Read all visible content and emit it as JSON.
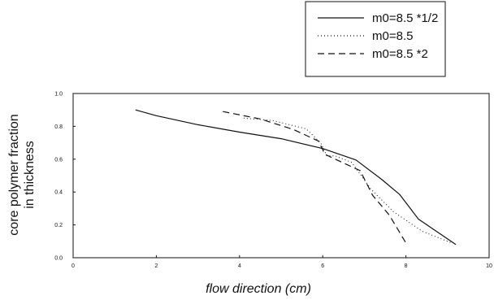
{
  "chart_data": {
    "type": "line",
    "xlabel": "flow direction  (cm)",
    "ylabel_lines": [
      "core polymer fraction",
      "in thickness"
    ],
    "xlim": [
      0,
      10
    ],
    "ylim": [
      0,
      1.0
    ],
    "xticks": [
      "0",
      "2",
      "4",
      "6",
      "8",
      "10"
    ],
    "yticks": [
      "0.0",
      "0.2",
      "0.4",
      "0.6",
      "0.8",
      "1.0"
    ],
    "grid": false,
    "legend_position": "top-right, outside plot",
    "series": [
      {
        "name": "m0=8.5 *1/2",
        "style": "solid",
        "x": [
          1.5,
          2.0,
          3.0,
          4.0,
          5.0,
          6.0,
          6.8,
          7.4,
          7.85,
          8.3,
          9.2
        ],
        "y": [
          0.9,
          0.865,
          0.81,
          0.765,
          0.725,
          0.665,
          0.595,
          0.48,
          0.385,
          0.235,
          0.08
        ]
      },
      {
        "name": "m0=8.5",
        "style": "dotted",
        "x": [
          4.1,
          4.8,
          5.6,
          5.95,
          6.1,
          6.3,
          6.7,
          7.15,
          7.7,
          8.4,
          9.1
        ],
        "y": [
          0.85,
          0.835,
          0.785,
          0.7,
          0.62,
          0.62,
          0.58,
          0.42,
          0.28,
          0.16,
          0.09
        ]
      },
      {
        "name": "m0=8.5 *2",
        "style": "dashed",
        "x": [
          3.6,
          4.5,
          5.3,
          5.9,
          6.05,
          6.3,
          6.9,
          7.2,
          7.6,
          8.0
        ],
        "y": [
          0.89,
          0.845,
          0.78,
          0.71,
          0.63,
          0.6,
          0.53,
          0.38,
          0.26,
          0.09
        ]
      }
    ]
  },
  "colors": {
    "line": "#111111",
    "background": "#ffffff"
  }
}
